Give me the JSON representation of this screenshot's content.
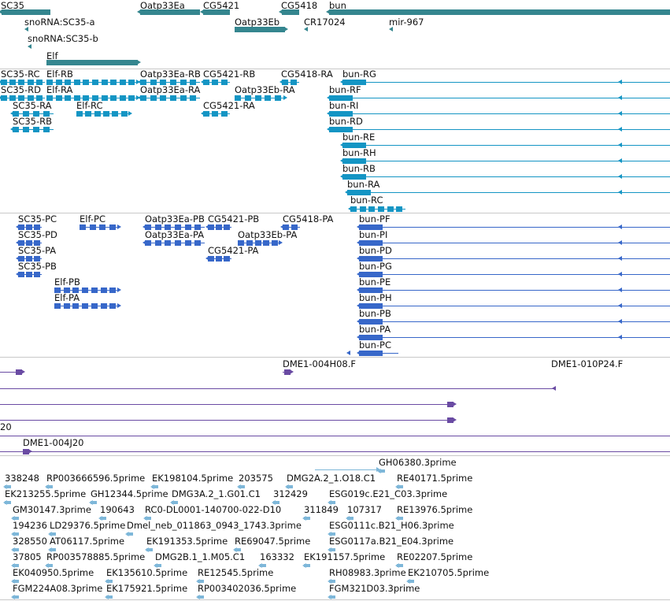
{
  "colors": {
    "gene": "#35868f",
    "transcript": "#1495c4",
    "protein": "#3767c9",
    "clone": "#6a4ba3",
    "est": "#7eb7d9"
  },
  "tracks": [
    {
      "name": "genes-track",
      "colorKey": "gene",
      "features": [
        {
          "label": "SC35",
          "strand": "-",
          "shape": "bar"
        },
        {
          "label": "Oatp33Ea",
          "strand": "-",
          "shape": "bar"
        },
        {
          "label": "CG5421",
          "strand": "-",
          "shape": "bar"
        },
        {
          "label": "CG5418",
          "strand": "-",
          "shape": "bar"
        },
        {
          "label": "bun",
          "strand": "-",
          "shape": "bar"
        },
        {
          "label": "snoRNA:SC35-a",
          "strand": "-",
          "shape": "mark"
        },
        {
          "label": "Oatp33Eb",
          "strand": "+",
          "shape": "bar"
        },
        {
          "label": "CR17024",
          "strand": "-",
          "shape": "mark"
        },
        {
          "label": "mir-967",
          "strand": "-",
          "shape": "mark"
        },
        {
          "label": "snoRNA:SC35-b",
          "strand": "-",
          "shape": "mark"
        },
        {
          "label": "Elf",
          "strand": "+",
          "shape": "bar"
        }
      ]
    },
    {
      "name": "transcripts-track",
      "colorKey": "transcript",
      "features": [
        {
          "label": "SC35-RC",
          "strand": "-",
          "shape": "tx"
        },
        {
          "label": "Elf-RB",
          "strand": "+",
          "shape": "tx"
        },
        {
          "label": "Oatp33Ea-RB",
          "strand": "-",
          "shape": "tx"
        },
        {
          "label": "CG5421-RB",
          "strand": "-",
          "shape": "tx"
        },
        {
          "label": "CG5418-RA",
          "strand": "-",
          "shape": "tx"
        },
        {
          "label": "bun-RG",
          "strand": "-",
          "shape": "tx"
        },
        {
          "label": "SC35-RD",
          "strand": "-",
          "shape": "tx"
        },
        {
          "label": "Elf-RA",
          "strand": "+",
          "shape": "tx"
        },
        {
          "label": "Oatp33Ea-RA",
          "strand": "-",
          "shape": "tx"
        },
        {
          "label": "Oatp33Eb-RA",
          "strand": "+",
          "shape": "tx"
        },
        {
          "label": "bun-RF",
          "strand": "-",
          "shape": "tx"
        },
        {
          "label": "SC35-RA",
          "strand": "-",
          "shape": "tx"
        },
        {
          "label": "Elf-RC",
          "strand": "+",
          "shape": "tx"
        },
        {
          "label": "CG5421-RA",
          "strand": "-",
          "shape": "tx"
        },
        {
          "label": "bun-RI",
          "strand": "-",
          "shape": "tx"
        },
        {
          "label": "SC35-RB",
          "strand": "-",
          "shape": "tx"
        },
        {
          "label": "bun-RD",
          "strand": "-",
          "shape": "tx"
        },
        {
          "label": "bun-RE",
          "strand": "-",
          "shape": "tx"
        },
        {
          "label": "bun-RH",
          "strand": "-",
          "shape": "tx"
        },
        {
          "label": "bun-RB",
          "strand": "-",
          "shape": "tx"
        },
        {
          "label": "bun-RA",
          "strand": "-",
          "shape": "tx"
        },
        {
          "label": "bun-RC",
          "strand": "-",
          "shape": "tx"
        }
      ]
    },
    {
      "name": "proteins-track",
      "colorKey": "protein",
      "features": [
        {
          "label": "SC35-PC",
          "strand": "-",
          "shape": "tx"
        },
        {
          "label": "Elf-PC",
          "strand": "+",
          "shape": "tx"
        },
        {
          "label": "Oatp33Ea-PB",
          "strand": "-",
          "shape": "tx"
        },
        {
          "label": "CG5421-PB",
          "strand": "-",
          "shape": "tx"
        },
        {
          "label": "CG5418-PA",
          "strand": "-",
          "shape": "tx"
        },
        {
          "label": "bun-PF",
          "strand": "-",
          "shape": "tx"
        },
        {
          "label": "SC35-PD",
          "strand": "-",
          "shape": "tx"
        },
        {
          "label": "Oatp33Ea-PA",
          "strand": "-",
          "shape": "tx"
        },
        {
          "label": "Oatp33Eb-PA",
          "strand": "+",
          "shape": "tx"
        },
        {
          "label": "bun-PI",
          "strand": "-",
          "shape": "tx"
        },
        {
          "label": "SC35-PA",
          "strand": "-",
          "shape": "tx"
        },
        {
          "label": "CG5421-PA",
          "strand": "-",
          "shape": "tx"
        },
        {
          "label": "bun-PD",
          "strand": "-",
          "shape": "tx"
        },
        {
          "label": "SC35-PB",
          "strand": "-",
          "shape": "tx"
        },
        {
          "label": "bun-PG",
          "strand": "-",
          "shape": "tx"
        },
        {
          "label": "Elf-PB",
          "strand": "+",
          "shape": "tx"
        },
        {
          "label": "bun-PE",
          "strand": "-",
          "shape": "tx"
        },
        {
          "label": "Elf-PA",
          "strand": "+",
          "shape": "tx"
        },
        {
          "label": "bun-PH",
          "strand": "-",
          "shape": "tx"
        },
        {
          "label": "bun-PB",
          "strand": "-",
          "shape": "tx"
        },
        {
          "label": "bun-PA",
          "strand": "-",
          "shape": "tx"
        },
        {
          "label": "bun-PC",
          "strand": "-",
          "shape": "tx"
        }
      ]
    },
    {
      "name": "clones-track",
      "colorKey": "clone",
      "features": [
        {
          "label": "",
          "strand": "+",
          "shape": "clone"
        },
        {
          "label": "DME1-004H08.F",
          "strand": "+",
          "shape": "clone"
        },
        {
          "label": "DME1-010P24.F",
          "strand": "-",
          "shape": "clone"
        },
        {
          "label": "",
          "strand": "-",
          "shape": "clone"
        },
        {
          "label": "",
          "strand": "+",
          "shape": "clone"
        },
        {
          "label": "20",
          "strand": "+",
          "shape": "clone"
        },
        {
          "label": "",
          "strand": "+",
          "shape": "clone"
        },
        {
          "label": "DME1-004J20",
          "strand": "+",
          "shape": "clone"
        }
      ]
    },
    {
      "name": "ests-track",
      "colorKey": "est",
      "features": [
        {
          "label": "GH06380.3prime"
        },
        {
          "label": "338248"
        },
        {
          "label": "RP003666596.5prime"
        },
        {
          "label": "EK198104.5prime"
        },
        {
          "label": "203575"
        },
        {
          "label": "DMG2A.2_1.O18.C1"
        },
        {
          "label": "RE40171.5prime"
        },
        {
          "label": "EK213255.5prime"
        },
        {
          "label": "GH12344.5prime"
        },
        {
          "label": "DMG3A.2_1.G01.C1"
        },
        {
          "label": "312429"
        },
        {
          "label": "ESG019c.E21_C03.3prime"
        },
        {
          "label": "GM30147.3prime"
        },
        {
          "label": "190643"
        },
        {
          "label": "RC0-DL0001-140700-022-D10"
        },
        {
          "label": "311849"
        },
        {
          "label": "107317"
        },
        {
          "label": "RE13976.5prime"
        },
        {
          "label": "194236"
        },
        {
          "label": "LD29376.5prime"
        },
        {
          "label": "Dmel_neb_011863_0943_1743.3prime"
        },
        {
          "label": "ESG0111c.B21_H06.3prime"
        },
        {
          "label": "328550"
        },
        {
          "label": "AT06117.5prime"
        },
        {
          "label": "EK191353.5prime"
        },
        {
          "label": "RE69047.5prime"
        },
        {
          "label": "ESG0117a.B21_E04.3prime"
        },
        {
          "label": "37805"
        },
        {
          "label": "RP003578885.5prime"
        },
        {
          "label": "DMG2B.1_1.M05.C1"
        },
        {
          "label": "163332"
        },
        {
          "label": "EK191157.5prime"
        },
        {
          "label": "RE02207.5prime"
        },
        {
          "label": "EK040950.5prime"
        },
        {
          "label": "EK135610.5prime"
        },
        {
          "label": "RE12545.5prime"
        },
        {
          "label": "RH08983.3prime"
        },
        {
          "label": "EK210705.5prime"
        },
        {
          "label": "FGM224A08.3prime"
        },
        {
          "label": "EK175921.5prime"
        },
        {
          "label": "RP003402036.5prime"
        },
        {
          "label": "FGM321D03.3prime"
        }
      ]
    }
  ]
}
